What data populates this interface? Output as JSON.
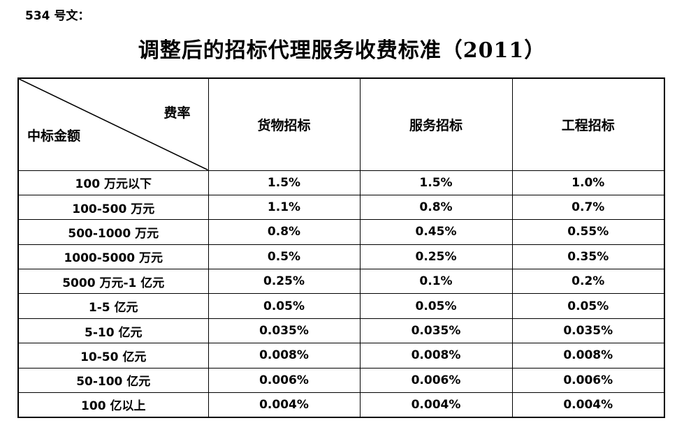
{
  "page": {
    "doc_label": "534 号文：",
    "title": "调整后的招标代理服务收费标准（2011）"
  },
  "table": {
    "corner": {
      "top_right": "费率",
      "bottom_left": "中标金额"
    },
    "columns": [
      "货物招标",
      "服务招标",
      "工程招标"
    ],
    "rows": [
      {
        "label": "100 万元以下",
        "values": [
          "1.5%",
          "1.5%",
          "1.0%"
        ]
      },
      {
        "label": "100-500 万元",
        "values": [
          "1.1%",
          "0.8%",
          "0.7%"
        ]
      },
      {
        "label": "500-1000 万元",
        "values": [
          "0.8%",
          "0.45%",
          "0.55%"
        ]
      },
      {
        "label": "1000-5000 万元",
        "values": [
          "0.5%",
          "0.25%",
          "0.35%"
        ]
      },
      {
        "label": "5000 万元-1 亿元",
        "values": [
          "0.25%",
          "0.1%",
          "0.2%"
        ]
      },
      {
        "label": "1-5 亿元",
        "values": [
          "0.05%",
          "0.05%",
          "0.05%"
        ]
      },
      {
        "label": "5-10 亿元",
        "values": [
          "0.035%",
          "0.035%",
          "0.035%"
        ]
      },
      {
        "label": "10-50 亿元",
        "values": [
          "0.008%",
          "0.008%",
          "0.008%"
        ]
      },
      {
        "label": "50-100 亿元",
        "values": [
          "0.006%",
          "0.006%",
          "0.006%"
        ]
      },
      {
        "label": "100 亿以上",
        "values": [
          "0.004%",
          "0.004%",
          "0.004%"
        ]
      }
    ]
  },
  "colors": {
    "text": "#000000",
    "border": "#000000",
    "background": "#ffffff"
  }
}
